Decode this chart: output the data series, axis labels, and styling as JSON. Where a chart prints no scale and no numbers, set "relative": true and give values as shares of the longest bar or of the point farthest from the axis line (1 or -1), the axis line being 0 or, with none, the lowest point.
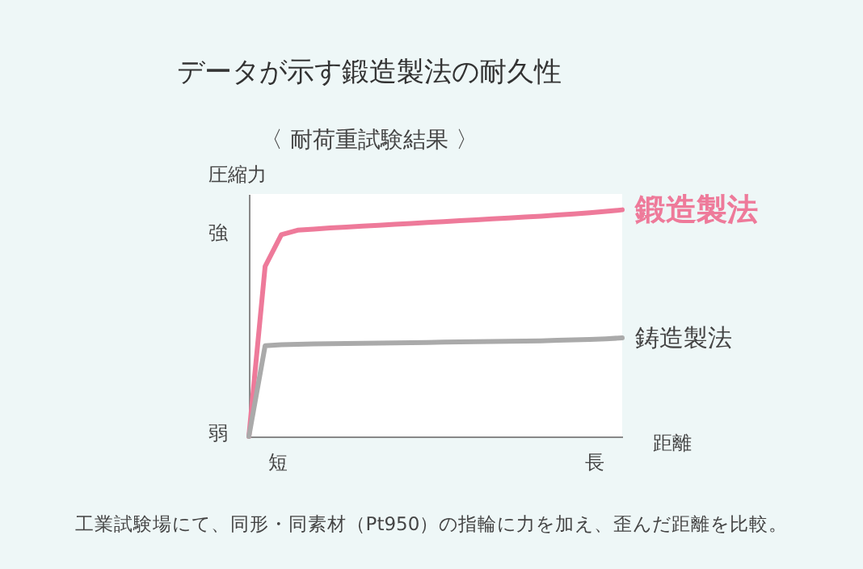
{
  "chart_data": {
    "type": "line",
    "title": "データが示す鍛造製法の耐久性",
    "subtitle": "〈 耐荷重試験結果 〉",
    "ylabel": "圧縮力",
    "xlabel": "距離",
    "relative": true,
    "grid": false,
    "legend": false,
    "categories": [
      null,
      null,
      null,
      null,
      null,
      null,
      null,
      null,
      null,
      null,
      null,
      null,
      null,
      null,
      null,
      null,
      null,
      null,
      null,
      null,
      null,
      null,
      null,
      null
    ],
    "series": [
      {
        "name": "鍛造製法",
        "color": "#ee7a9a",
        "values": [
          0,
          0.75,
          0.89,
          0.91,
          0.915,
          0.92,
          0.924,
          0.928,
          0.932,
          0.936,
          0.94,
          0.944,
          0.948,
          0.952,
          0.956,
          0.96,
          0.964,
          0.968,
          0.972,
          0.977,
          0.982,
          0.987,
          0.993,
          1
        ]
      },
      {
        "name": "鋳造製法",
        "color": "#aaaaaa",
        "values": [
          0,
          0.4,
          0.405,
          0.407,
          0.408,
          0.409,
          0.41,
          0.411,
          0.412,
          0.413,
          0.414,
          0.415,
          0.416,
          0.417,
          0.418,
          0.419,
          0.42,
          0.421,
          0.422,
          0.424,
          0.426,
          0.428,
          0.431,
          0.435
        ]
      }
    ],
    "annotations": [
      "強",
      "弱",
      "短",
      "長",
      "工業試験場にて、同形・同素材（Pt950）の指輪に力を加え、歪んだ距離を比較。"
    ]
  }
}
